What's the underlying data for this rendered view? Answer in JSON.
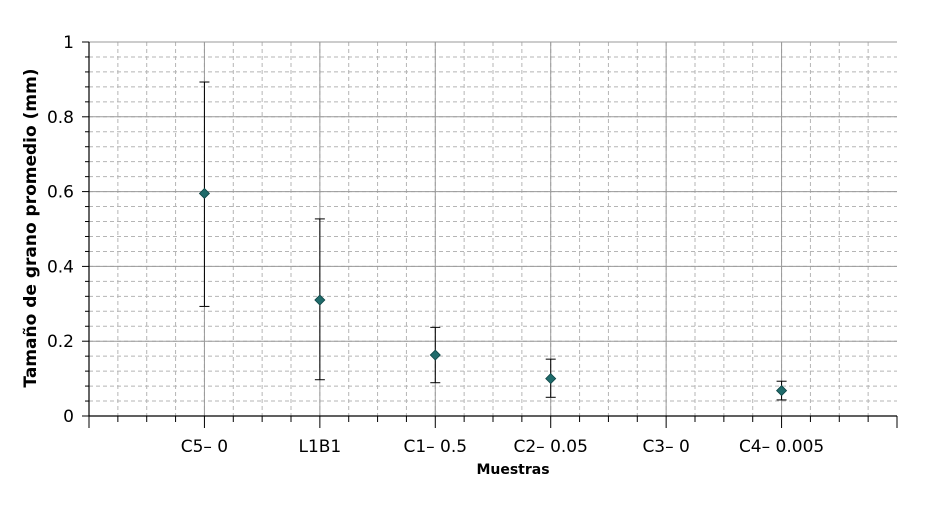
{
  "chart_data": {
    "type": "scatter",
    "title": "",
    "xlabel": "Muestras",
    "ylabel": "Tamaño de grano promedio (mm)",
    "ylim": [
      0,
      1
    ],
    "yticks": [
      "0",
      "0.2",
      "0.4",
      "0.6",
      "0.8",
      "1"
    ],
    "grid": true,
    "categories": [
      "C5– 0",
      "L1B1",
      "C1– 0.5",
      "C2– 0.05",
      "C3– 0",
      "C4– 0.005"
    ],
    "values": [
      0.595,
      0.31,
      0.163,
      0.1,
      null,
      0.068
    ],
    "error_low": [
      0.293,
      0.097,
      0.089,
      0.05,
      null,
      0.043
    ],
    "error_high": [
      0.893,
      0.527,
      0.237,
      0.152,
      null,
      0.093
    ],
    "marker_color": "#1f6b6b"
  }
}
